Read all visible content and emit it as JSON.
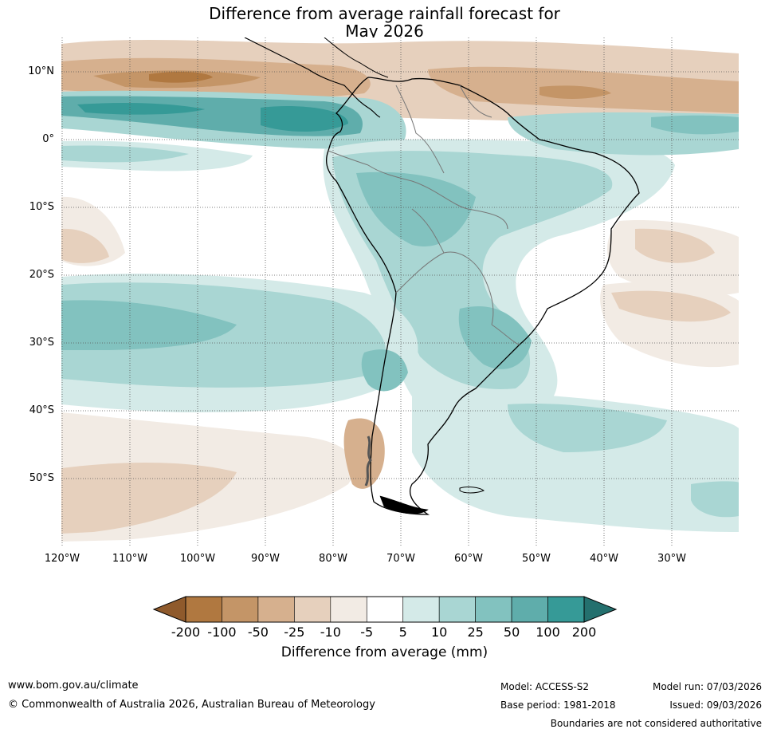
{
  "title": {
    "line1": "Difference from average rainfall forecast for",
    "line2": "May 2026"
  },
  "map": {
    "latitude_labels": [
      "10°N",
      "0°",
      "10°S",
      "20°S",
      "30°S",
      "40°S",
      "50°S"
    ],
    "longitude_labels": [
      "120°W",
      "110°W",
      "100°W",
      "90°W",
      "80°W",
      "70°W",
      "60°W",
      "50°W",
      "40°W",
      "30°W"
    ]
  },
  "legend": {
    "ticks": [
      "-200",
      "-100",
      "-50",
      "-25",
      "-10",
      "-5",
      "5",
      "10",
      "25",
      "50",
      "100",
      "200"
    ],
    "colors": [
      "#8f5a2c",
      "#b07840",
      "#c49567",
      "#d6b08e",
      "#e6d0bd",
      "#f2ebe4",
      "#ffffff",
      "#d4eae8",
      "#a9d6d3",
      "#82c2bf",
      "#5fadab",
      "#369a97",
      "#24706e"
    ],
    "label": "Difference from average (mm)"
  },
  "footer": {
    "website": "www.bom.gov.au/climate",
    "copyright": "© Commonwealth of Australia 2026, Australian Bureau of Meteorology",
    "model": "Model: ACCESS-S2",
    "base_period": "Base period: 1981-2018",
    "model_run": "Model run: 07/03/2026",
    "issued": "Issued: 09/03/2026",
    "disclaimer": "Boundaries are not considered authoritative"
  }
}
